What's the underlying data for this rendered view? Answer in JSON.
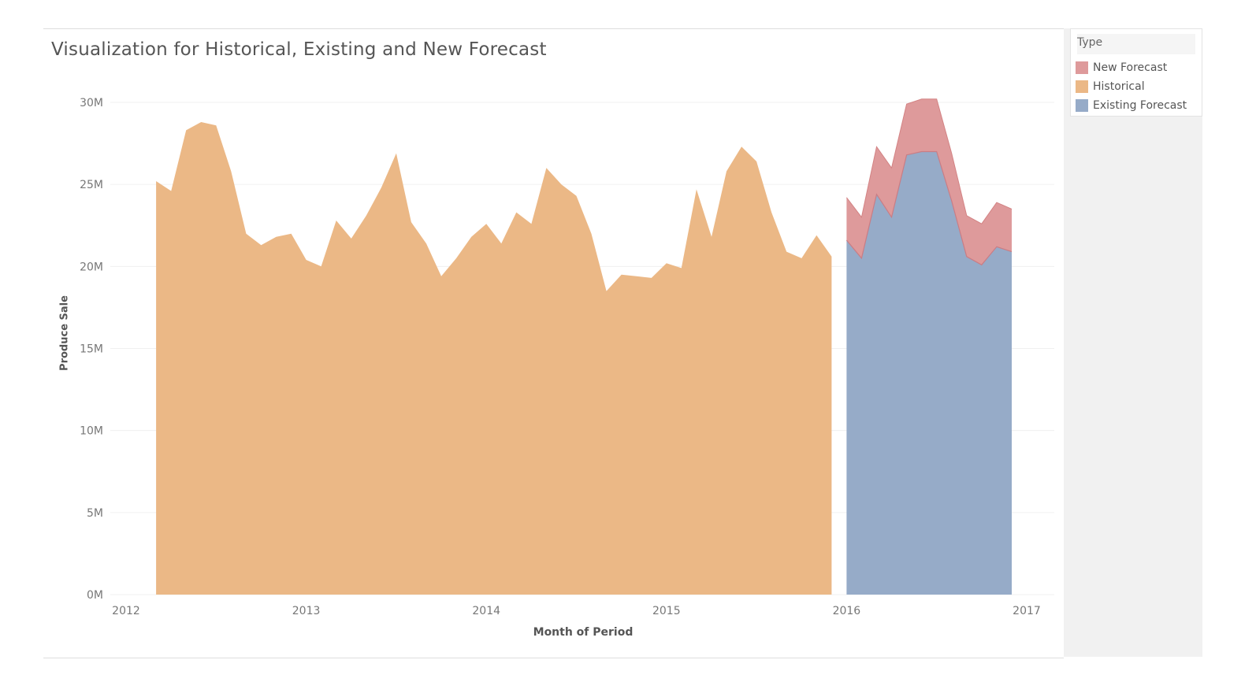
{
  "chart_data": {
    "type": "area",
    "title": "Visualization for Historical, Existing and New Forecast",
    "xlabel": "Month of Period",
    "ylabel": "Produce Sale",
    "x_ticks": [
      "2012",
      "2013",
      "2014",
      "2015",
      "2016",
      "2017"
    ],
    "y_ticks": [
      "0M",
      "5M",
      "10M",
      "15M",
      "20M",
      "25M",
      "30M"
    ],
    "ylim": [
      0,
      30
    ],
    "y_unit": "M",
    "grid": true,
    "legend_position": "right",
    "legend_title": "Type",
    "series": [
      {
        "name": "Historical",
        "color": "#ebb886",
        "x": [
          "2012-03",
          "2012-04",
          "2012-05",
          "2012-06",
          "2012-07",
          "2012-08",
          "2012-09",
          "2012-10",
          "2012-11",
          "2012-12",
          "2013-01",
          "2013-02",
          "2013-03",
          "2013-04",
          "2013-05",
          "2013-06",
          "2013-07",
          "2013-08",
          "2013-09",
          "2013-10",
          "2013-11",
          "2013-12",
          "2014-01",
          "2014-02",
          "2014-03",
          "2014-04",
          "2014-05",
          "2014-06",
          "2014-07",
          "2014-08",
          "2014-09",
          "2014-10",
          "2014-11",
          "2014-12",
          "2015-01",
          "2015-02",
          "2015-03",
          "2015-04",
          "2015-05",
          "2015-06",
          "2015-07",
          "2015-08",
          "2015-09",
          "2015-10",
          "2015-11",
          "2015-12"
        ],
        "values": [
          25.2,
          24.6,
          28.3,
          28.8,
          28.6,
          25.8,
          22.0,
          21.3,
          21.8,
          22.0,
          20.4,
          20.0,
          22.8,
          21.7,
          23.1,
          24.8,
          26.9,
          22.7,
          21.4,
          19.4,
          20.5,
          21.8,
          22.6,
          21.4,
          23.3,
          22.6,
          26.0,
          25.0,
          24.3,
          22.0,
          18.5,
          19.5,
          19.4,
          19.3,
          20.2,
          19.9,
          24.7,
          21.8,
          25.8,
          27.3,
          26.4,
          23.3,
          20.9,
          20.5,
          21.9,
          20.6
        ]
      },
      {
        "name": "Existing Forecast",
        "color": "#96abc8",
        "x": [
          "2016-01",
          "2016-02",
          "2016-03",
          "2016-04",
          "2016-05",
          "2016-06",
          "2016-07",
          "2016-08",
          "2016-09",
          "2016-10",
          "2016-11",
          "2016-12"
        ],
        "values": [
          21.6,
          20.5,
          24.4,
          23.0,
          26.8,
          27.0,
          27.0,
          24.0,
          20.6,
          20.1,
          21.2,
          20.9
        ]
      },
      {
        "name": "New Forecast",
        "color": "#de9a9b",
        "x": [
          "2016-01",
          "2016-02",
          "2016-03",
          "2016-04",
          "2016-05",
          "2016-06",
          "2016-07",
          "2016-08",
          "2016-09",
          "2016-10",
          "2016-11",
          "2016-12"
        ],
        "values": [
          24.2,
          23.0,
          27.3,
          26.0,
          29.9,
          30.2,
          30.2,
          26.9,
          23.1,
          22.6,
          23.9,
          23.5
        ]
      }
    ]
  },
  "legend": {
    "title": "Type",
    "items": [
      {
        "label": "New Forecast",
        "color": "#de9a9b"
      },
      {
        "label": "Historical",
        "color": "#ebb886"
      },
      {
        "label": "Existing Forecast",
        "color": "#96abc8"
      }
    ]
  }
}
